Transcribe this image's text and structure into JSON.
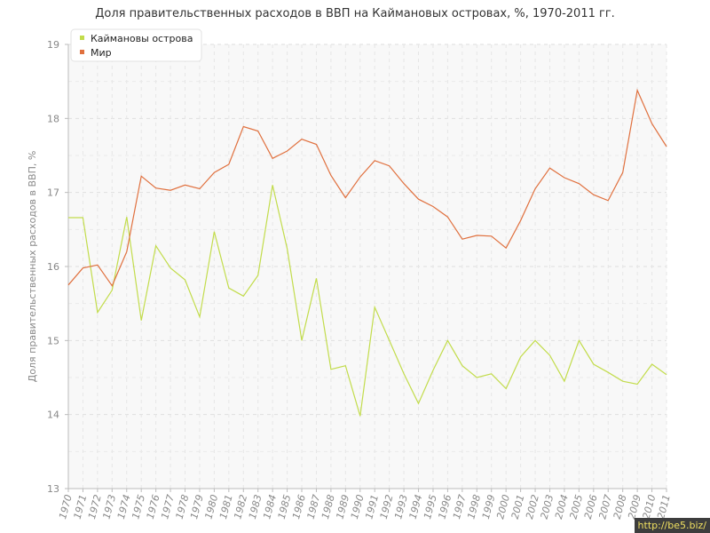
{
  "chart_data": {
    "type": "line",
    "title": "Доля правительственных расходов в ВВП на Каймановых островах, %, 1970-2011 гг.",
    "ylabel": "Доля правительственных расходов в ВВП, %",
    "xlabel": "",
    "ylim": [
      13,
      19
    ],
    "yticks": [
      "13",
      "14",
      "15",
      "16",
      "17",
      "18",
      "19"
    ],
    "categories": [
      "1970",
      "1971",
      "1972",
      "1973",
      "1974",
      "1975",
      "1976",
      "1977",
      "1978",
      "1979",
      "1980",
      "1981",
      "1982",
      "1983",
      "1984",
      "1985",
      "1986",
      "1987",
      "1988",
      "1989",
      "1990",
      "1991",
      "1992",
      "1993",
      "1994",
      "1995",
      "1996",
      "1997",
      "1998",
      "1999",
      "2000",
      "2001",
      "2002",
      "2003",
      "2004",
      "2005",
      "2006",
      "2007",
      "2008",
      "2009",
      "2010",
      "2011"
    ],
    "series": [
      {
        "name": "Каймановы острова",
        "color": "#c2dc4b",
        "values": [
          16.66,
          16.66,
          15.38,
          15.68,
          16.67,
          15.27,
          16.28,
          15.98,
          15.82,
          15.32,
          16.47,
          15.71,
          15.6,
          15.88,
          17.1,
          16.24,
          15.0,
          15.84,
          14.61,
          14.66,
          13.98,
          15.45,
          15.0,
          14.55,
          14.15,
          14.6,
          15.0,
          14.66,
          14.5,
          14.55,
          14.35,
          14.78,
          15.0,
          14.8,
          14.45,
          15.0,
          14.68,
          14.57,
          14.45,
          14.41,
          14.68,
          14.54
        ]
      },
      {
        "name": "Мир",
        "color": "#e0703e",
        "values": [
          15.75,
          15.98,
          16.02,
          15.74,
          16.2,
          17.22,
          17.06,
          17.03,
          17.1,
          17.05,
          17.27,
          17.38,
          17.89,
          17.83,
          17.46,
          17.56,
          17.72,
          17.65,
          17.23,
          16.93,
          17.21,
          17.43,
          17.36,
          17.12,
          16.91,
          16.81,
          16.67,
          16.37,
          16.42,
          16.41,
          16.25,
          16.62,
          17.05,
          17.33,
          17.2,
          17.12,
          16.97,
          16.89,
          17.27,
          18.38,
          17.93,
          17.62
        ]
      }
    ],
    "grid": true,
    "legend": "top-left"
  },
  "watermark": "http://be5.biz/"
}
